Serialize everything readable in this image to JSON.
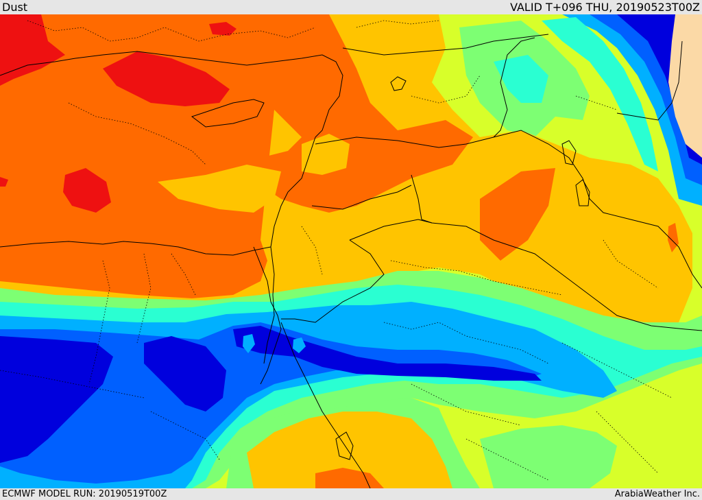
{
  "header": {
    "field_name": "Dust",
    "valid_time": "VALID T+096 THU, 20190523T00Z"
  },
  "footer": {
    "model_run": "ECMWF MODEL RUN: 20190519T00Z",
    "provider": "ArabiaWeather Inc."
  },
  "map": {
    "layer": "dust concentration forecast",
    "region": "Eastern Mediterranean, Egypt, Levant, Arabian Peninsula",
    "colors": {
      "sea_of_dust_max": "#ee1111",
      "very_high": "#ff6a00",
      "high": "#ffc400",
      "moderate": "#d8ff2a",
      "low_moderate": "#7dff73",
      "low": "#2affd2",
      "very_low": "#00b0ff",
      "minimal": "#0060ff",
      "none": "#0000dd",
      "outside": "#fbd9a6"
    }
  }
}
